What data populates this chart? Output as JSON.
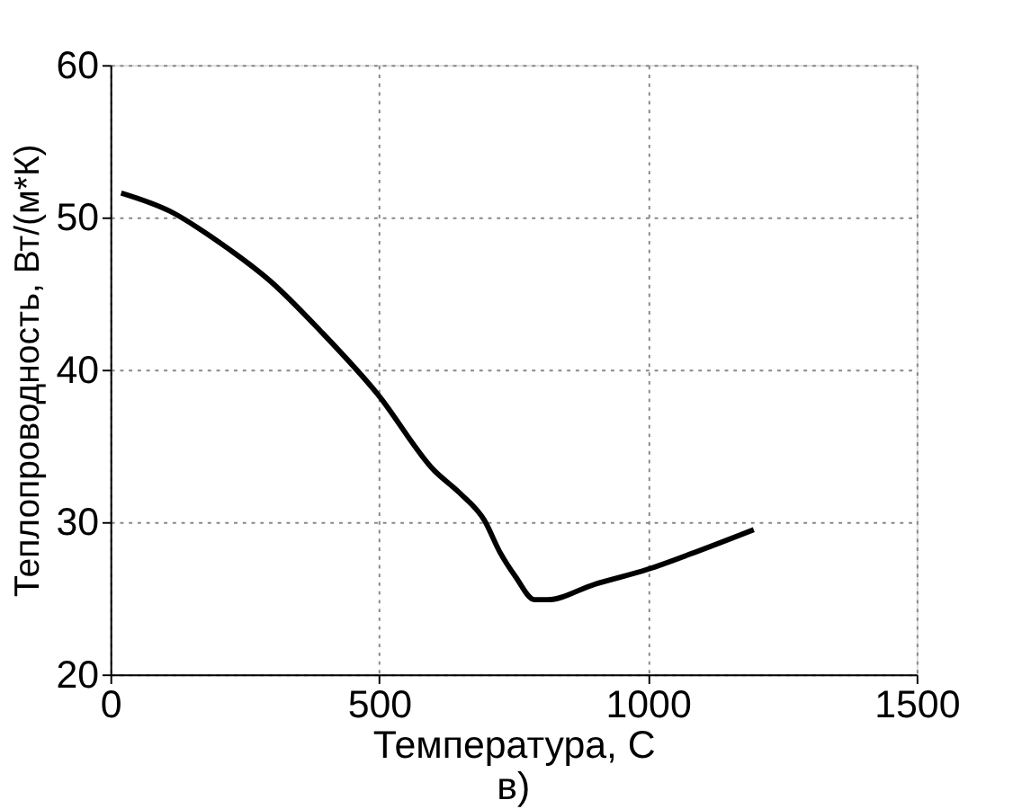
{
  "chart_data": {
    "type": "line",
    "xlabel": "Температура, С",
    "ylabel": "Теплопроводность, Вт/(м*К)",
    "annotations": [
      "в)"
    ],
    "x": [
      20,
      111,
      205,
      298,
      392,
      497,
      602,
      650,
      696,
      725,
      754,
      789,
      813,
      900,
      1000,
      1094,
      1197
    ],
    "series": [
      {
        "color": "#000000",
        "values": [
          51.6,
          50.4,
          48.3,
          45.8,
          42.5,
          38.4,
          33.4,
          31.9,
          30.1,
          28.0,
          26.4,
          24.9,
          24.9,
          25.9,
          26.9,
          28.1,
          29.5
        ]
      }
    ],
    "xlim": [
      0,
      1500
    ],
    "xticks": [
      0,
      500,
      1000,
      1500
    ],
    "ylim": [
      20,
      60
    ],
    "yticks": [
      20,
      30,
      40,
      50,
      60
    ],
    "grid": true,
    "marker": "none",
    "line_style": "solid"
  }
}
